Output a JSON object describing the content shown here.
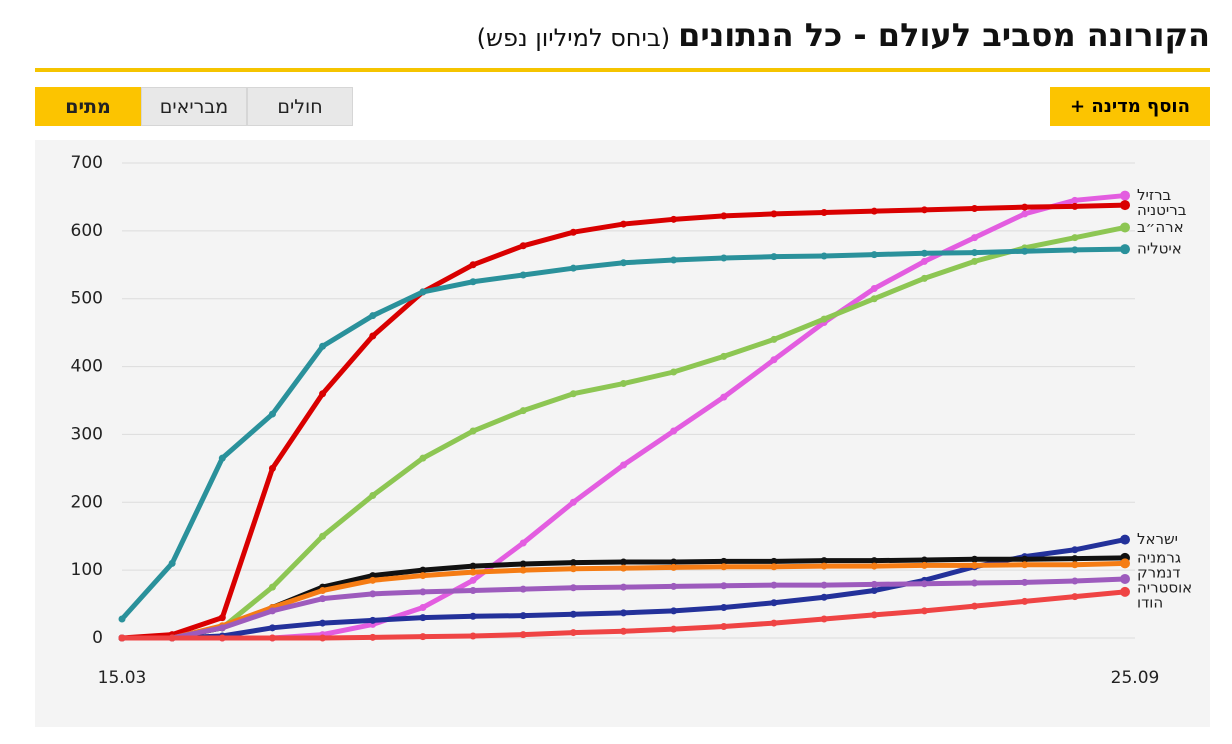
{
  "header": {
    "title": "הקורונה מסביב לעולם - כל הנתונים",
    "subtitle": "(ביחס למיליון נפש)"
  },
  "tabs": [
    "מתים",
    "מבריאים",
    "חולים"
  ],
  "active_tab": 0,
  "add_button": "הוסף מדינה +",
  "chart_data": {
    "type": "line",
    "categories": [
      "15.03",
      null,
      null,
      null,
      null,
      null,
      null,
      null,
      null,
      null,
      null,
      null,
      null,
      null,
      null,
      null,
      null,
      null,
      null,
      null,
      "25.09"
    ],
    "ylim": [
      0,
      700
    ],
    "yticks": [
      0,
      100,
      200,
      300,
      400,
      500,
      600,
      700
    ],
    "grid": true,
    "series": [
      {
        "name": "ברזיל",
        "color": "#e35de0",
        "values": [
          0,
          0,
          0,
          0,
          5,
          20,
          45,
          85,
          140,
          200,
          255,
          305,
          355,
          410,
          465,
          515,
          555,
          590,
          625,
          645,
          652
        ]
      },
      {
        "name": "בריטניה",
        "color": "#d90000",
        "values": [
          0,
          5,
          30,
          250,
          360,
          445,
          510,
          550,
          578,
          598,
          610,
          617,
          622,
          625,
          627,
          629,
          631,
          633,
          635,
          636,
          638
        ]
      },
      {
        "name": "ארה״ב",
        "color": "#8dc653",
        "values": [
          0,
          0,
          15,
          75,
          150,
          210,
          265,
          305,
          335,
          360,
          375,
          392,
          415,
          440,
          470,
          500,
          530,
          555,
          575,
          590,
          605
        ]
      },
      {
        "name": "איטליה",
        "color": "#2a919b",
        "values": [
          28,
          110,
          265,
          330,
          430,
          475,
          510,
          525,
          535,
          545,
          553,
          557,
          560,
          562,
          563,
          565,
          567,
          568,
          570,
          572,
          573
        ]
      },
      {
        "name": "ישראל",
        "color": "#23319a",
        "values": [
          0,
          0,
          3,
          15,
          22,
          26,
          30,
          32,
          33,
          35,
          37,
          40,
          45,
          52,
          60,
          70,
          85,
          105,
          120,
          130,
          145
        ]
      },
      {
        "name": "גרמניה",
        "color": "#111111",
        "values": [
          0,
          0,
          15,
          45,
          75,
          92,
          100,
          106,
          109,
          111,
          112,
          112,
          113,
          113,
          114,
          114,
          115,
          116,
          116,
          117,
          118
        ]
      },
      {
        "name": "דנמרק",
        "color": "#f57c14",
        "values": [
          0,
          0,
          18,
          45,
          70,
          85,
          92,
          97,
          100,
          102,
          103,
          104,
          105,
          105,
          106,
          106,
          107,
          107,
          108,
          108,
          110
        ]
      },
      {
        "name": "אוסטריה",
        "color": "#9d5bbd",
        "values": [
          0,
          0,
          15,
          40,
          58,
          65,
          68,
          70,
          72,
          74,
          75,
          76,
          77,
          78,
          78,
          79,
          80,
          81,
          82,
          84,
          87
        ]
      },
      {
        "name": "הודו",
        "color": "#ef4444",
        "values": [
          0,
          0,
          0,
          0,
          0,
          1,
          2,
          3,
          5,
          8,
          10,
          13,
          17,
          22,
          28,
          34,
          40,
          47,
          54,
          61,
          68
        ]
      }
    ]
  }
}
